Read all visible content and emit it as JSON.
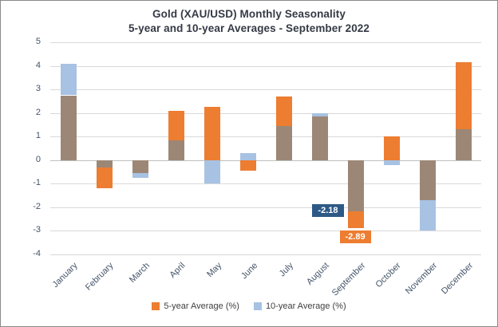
{
  "title": {
    "line1": "Gold (XAU/USD) Monthly Seasonality",
    "line2": "5-year and 10-year Averages - September 2022"
  },
  "chart_data": {
    "type": "bar",
    "title": "Gold (XAU/USD) Monthly Seasonality — 5-year and 10-year Averages - September 2022",
    "categories": [
      "January",
      "February",
      "March",
      "April",
      "May",
      "June",
      "July",
      "August",
      "September",
      "October",
      "November",
      "December"
    ],
    "series": [
      {
        "name": "5-year Average (%)",
        "color": "#ED7D31",
        "values": [
          2.75,
          -1.2,
          -0.55,
          2.1,
          2.25,
          -0.45,
          2.7,
          1.85,
          -2.89,
          1.0,
          -1.7,
          4.15
        ]
      },
      {
        "name": "10-year Average (%)",
        "color": "#A7C2E3",
        "values": [
          4.1,
          -0.3,
          -0.75,
          0.85,
          -1.0,
          0.3,
          1.45,
          2.0,
          -2.18,
          -0.2,
          -3.0,
          1.3
        ]
      }
    ],
    "overlap_color": "#9C8776",
    "ylim": [
      -4,
      5
    ],
    "yticks": [
      5,
      4,
      3,
      2,
      1,
      0,
      -1,
      -2,
      -3,
      -4
    ],
    "grid": true,
    "legend_position": "bottom",
    "annotations": [
      {
        "text": "-2.18",
        "value": -2.18,
        "month_index": 8,
        "series": "10-year-average",
        "position": "left",
        "bg": "#2D5986",
        "text_color": "#FFFFFF"
      },
      {
        "text": "-2.89",
        "value": -2.89,
        "month_index": 8,
        "series": "5-year-average",
        "position": "below",
        "bg": "#ED7D31",
        "text_color": "#FFFFFF"
      }
    ]
  }
}
